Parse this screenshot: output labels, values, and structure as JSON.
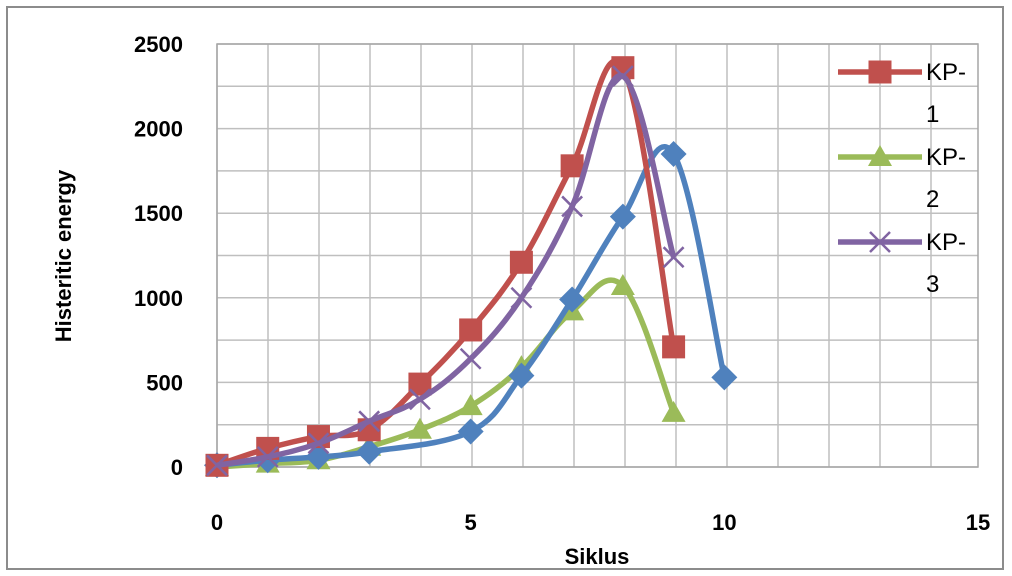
{
  "chart_data": {
    "type": "line",
    "xlabel": "Siklus",
    "ylabel": "Histeritic energy",
    "xlim": [
      0,
      15
    ],
    "ylim": [
      0,
      2500
    ],
    "xticks": [
      0,
      5,
      10,
      15
    ],
    "yticks": [
      0,
      500,
      1000,
      1500,
      2000,
      2500
    ],
    "grid": true,
    "legend_position": "right",
    "series": [
      {
        "name": "KP-1",
        "color": "#c0504d",
        "marker": "square",
        "x": [
          0,
          1,
          2,
          3,
          4,
          5,
          6,
          7,
          8,
          9
        ],
        "y": [
          10,
          110,
          180,
          220,
          490,
          810,
          1210,
          1780,
          2360,
          710
        ]
      },
      {
        "name": "KP-2",
        "color": "#9bbb59",
        "marker": "triangle",
        "x": [
          0,
          1,
          2,
          3,
          4,
          5,
          6,
          7,
          8,
          9
        ],
        "y": [
          0,
          20,
          40,
          120,
          220,
          360,
          590,
          920,
          1070,
          320
        ]
      },
      {
        "name": "KP-3",
        "color": "#8064a2",
        "marker": "x",
        "x": [
          0,
          1,
          2,
          3,
          4,
          5,
          6,
          7,
          8,
          9
        ],
        "y": [
          10,
          60,
          140,
          270,
          400,
          640,
          1000,
          1540,
          2310,
          1240
        ]
      },
      {
        "name": "",
        "color": "#4f81bd",
        "marker": "diamond",
        "x": [
          0,
          1,
          2,
          3,
          5,
          6,
          7,
          8,
          9,
          10
        ],
        "y": [
          10,
          40,
          60,
          90,
          210,
          540,
          990,
          1480,
          1850,
          530
        ]
      }
    ],
    "legend": [
      {
        "label_line1": "KP-",
        "label_line2": "1",
        "series": 0
      },
      {
        "label_line1": "KP-",
        "label_line2": "2",
        "series": 1
      },
      {
        "label_line1": "KP-",
        "label_line2": "3",
        "series": 2
      }
    ]
  }
}
